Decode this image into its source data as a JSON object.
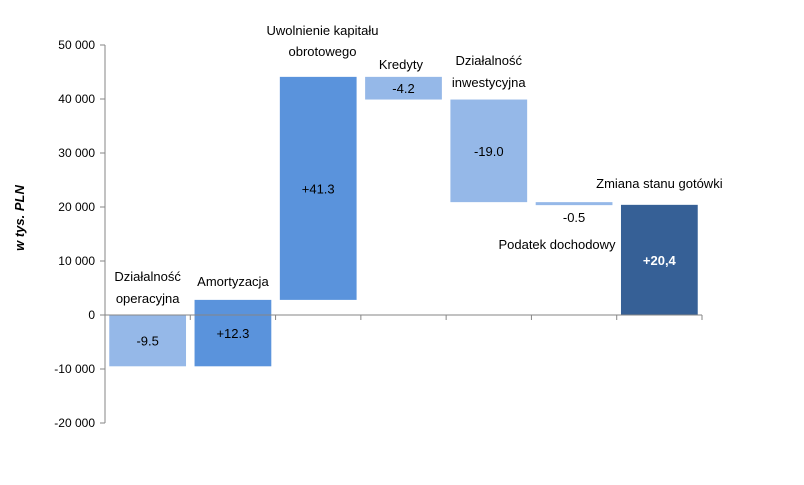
{
  "chart_data": {
    "type": "bar",
    "subtype": "waterfall",
    "title": "",
    "ylabel": "w tys. PLN",
    "xlabel": "",
    "ylim": [
      -20000,
      50000
    ],
    "ytick_step": 10000,
    "ytick_labels": [
      "-20 000",
      "-10 000",
      "0",
      "10 000",
      "20 000",
      "30 000",
      "40 000",
      "50 000"
    ],
    "grid": false,
    "legend": "none",
    "steps": [
      {
        "label_lines": [
          "Działalność",
          "operacyjna"
        ],
        "start": 0,
        "end": -9500,
        "data_label": "-9.5",
        "color": "#95b8e8"
      },
      {
        "label_lines": [
          "Amortyzacja"
        ],
        "start": -9500,
        "end": 2800,
        "data_label": "+12.3",
        "color": "#5a93dc"
      },
      {
        "label_lines": [
          "Uwolnienie  kapitału",
          "obrotowego"
        ],
        "start": 2800,
        "end": 44100,
        "data_label": "+41.3",
        "color": "#5a93dc"
      },
      {
        "label_lines": [
          "Kredyty"
        ],
        "start": 44100,
        "end": 39900,
        "data_label": "-4.2",
        "color": "#95b8e8"
      },
      {
        "label_lines": [
          "Działalność",
          "inwestycyjna"
        ],
        "start": 39900,
        "end": 20900,
        "data_label": "-19.0",
        "color": "#95b8e8"
      },
      {
        "label_lines": [
          "Podatek dochodowy"
        ],
        "start": 20900,
        "end": 20400,
        "data_label": "-0.5",
        "color": "#95b8e8"
      },
      {
        "label_lines": [
          "Zmiana stanu gotówki"
        ],
        "start": 0,
        "end": 20400,
        "data_label": "+20,4",
        "color": "#366096"
      }
    ]
  }
}
